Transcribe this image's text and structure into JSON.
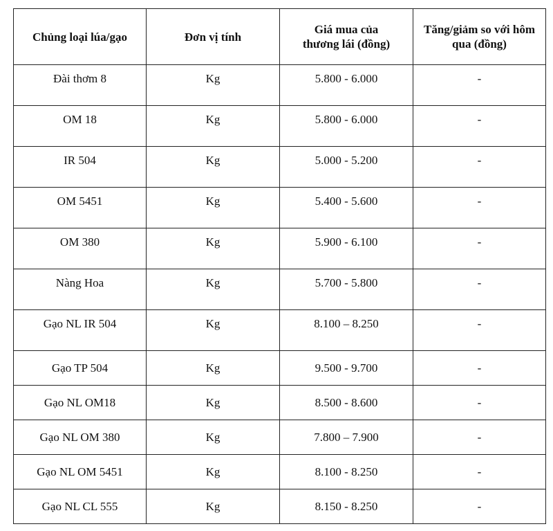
{
  "table": {
    "headers": [
      "Chủng loại lúa/gạo",
      "Đơn vị tính",
      "Giá mua của thương lái (đồng)",
      "Tăng/giảm so với hôm qua (đồng)"
    ],
    "rows": [
      [
        "Đài thơm 8",
        "Kg",
        "5.800 - 6.000",
        "-"
      ],
      [
        "OM 18",
        "Kg",
        "5.800 - 6.000",
        "-"
      ],
      [
        "IR 504",
        "Kg",
        "5.000 - 5.200",
        "-"
      ],
      [
        "OM 5451",
        "Kg",
        "5.400 - 5.600",
        "-"
      ],
      [
        "OM 380",
        "Kg",
        "5.900 - 6.100",
        "-"
      ],
      [
        "Nàng Hoa",
        "Kg",
        "5.700 - 5.800",
        "-"
      ],
      [
        "Gạo NL IR 504",
        "Kg",
        "8.100 – 8.250",
        "-"
      ],
      [
        "Gạo TP 504",
        "Kg",
        "9.500 - 9.700",
        "-"
      ],
      [
        "Gạo NL OM18",
        "Kg",
        "8.500 - 8.600",
        "-"
      ],
      [
        "Gạo NL OM 380",
        "Kg",
        "7.800 – 7.900",
        "-"
      ],
      [
        "Gạo NL OM 5451",
        "Kg",
        "8.100 - 8.250",
        "-"
      ],
      [
        "Gạo NL CL 555",
        "Kg",
        "8.150 - 8.250",
        "-"
      ]
    ]
  }
}
